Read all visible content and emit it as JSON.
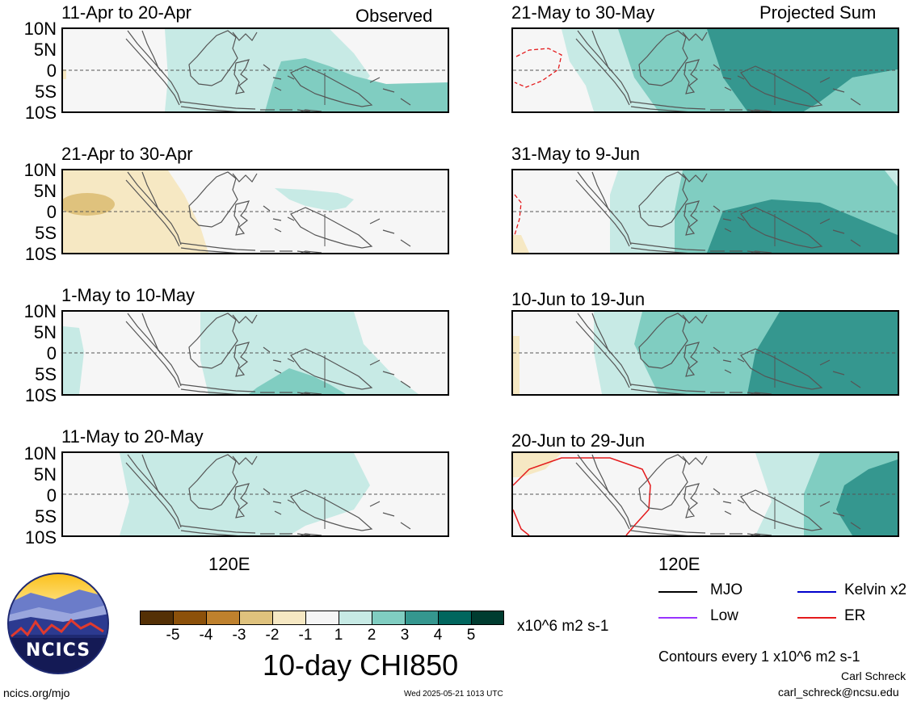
{
  "header": {
    "left_label": "Observed",
    "right_label": "Projected Sum"
  },
  "lat_labels": [
    "10N",
    "5N",
    "0",
    "5S",
    "10S"
  ],
  "lon_label": "120E",
  "panels": {
    "left": [
      {
        "title": "11-Apr to 20-Apr"
      },
      {
        "title": "21-Apr to 30-Apr"
      },
      {
        "title": "1-May to 10-May"
      },
      {
        "title": "11-May to 20-May"
      }
    ],
    "right": [
      {
        "title": "21-May to 30-May"
      },
      {
        "title": "31-May to 9-Jun"
      },
      {
        "title": "10-Jun to 19-Jun"
      },
      {
        "title": "20-Jun to 29-Jun"
      }
    ]
  },
  "colors": {
    "neg5": "#543005",
    "neg4": "#8c510a",
    "neg3": "#bf812d",
    "neg2": "#dfc27d",
    "neg1": "#f6e8c3",
    "neutral": "#f5f5f5",
    "pos1": "#c7eae5",
    "pos2": "#80cdc1",
    "pos3": "#35978f",
    "pos4": "#01665e",
    "pos5": "#003c30",
    "coast": "#555555",
    "er": "#e41a1c"
  },
  "colorbar": {
    "ticks": [
      "-5",
      "-4",
      "-3",
      "-2",
      "-1",
      "1",
      "2",
      "3",
      "4",
      "5"
    ],
    "units": "x10^6 m2 s-1",
    "title": "10-day CHI850"
  },
  "legend": {
    "items": [
      {
        "label": "MJO",
        "color": "#000000"
      },
      {
        "label": "Kelvin x2",
        "color": "#0000cc"
      },
      {
        "label": "Low",
        "color": "#9933ff"
      },
      {
        "label": "ER",
        "color": "#e41a1c"
      }
    ],
    "contours_note": "Contours every 1 x10^6 m2 s-1"
  },
  "footer": {
    "author": "Carl Schreck",
    "email": "carl_schreck@ncsu.edu",
    "site": "ncics.org/mjo",
    "timestamp": "Wed 2025-05-21 1013 UTC",
    "logo_text": "NCICS"
  }
}
